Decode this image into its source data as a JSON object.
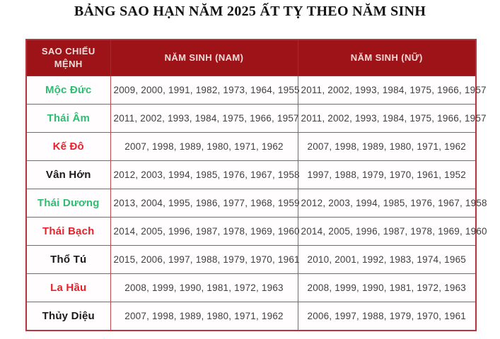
{
  "title": "BẢNG SAO HẠN NĂM 2025 ẤT TỴ THEO NĂM SINH",
  "table": {
    "headers": [
      "SAO CHIẾU MỆNH",
      "NĂM SINH (NAM)",
      "NĂM SINH (NỮ)"
    ],
    "rows": [
      {
        "star": "Mộc Đức",
        "color": "green",
        "nam": "2009, 2000, 1991, 1982, 1973, 1964, 1955",
        "nu": "2011, 2002, 1993, 1984, 1975, 1966, 1957"
      },
      {
        "star": "Thái Âm",
        "color": "green",
        "nam": "2011, 2002, 1993, 1984, 1975, 1966, 1957",
        "nu": "2011, 2002, 1993, 1984, 1975, 1966, 1957"
      },
      {
        "star": "Kế Đô",
        "color": "red",
        "nam": "2007, 1998, 1989, 1980, 1971, 1962",
        "nu": "2007, 1998, 1989, 1980, 1971, 1962"
      },
      {
        "star": "Vân Hớn",
        "color": "black",
        "nam": "2012, 2003, 1994, 1985, 1976, 1967, 1958",
        "nu": "1997, 1988, 1979, 1970, 1961, 1952"
      },
      {
        "star": "Thái Dương",
        "color": "green",
        "nam": "2013, 2004, 1995, 1986, 1977, 1968, 1959",
        "nu": "2012, 2003, 1994, 1985, 1976, 1967, 1958"
      },
      {
        "star": "Thái Bạch",
        "color": "red",
        "nam": "2014, 2005, 1996, 1987, 1978, 1969, 1960",
        "nu": "2014, 2005, 1996, 1987, 1978, 1969, 1960"
      },
      {
        "star": "Thổ Tú",
        "color": "black",
        "nam": "2015, 2006, 1997, 1988, 1979, 1970, 1961",
        "nu": "2010, 2001, 1992, 1983, 1974, 1965"
      },
      {
        "star": "La Hầu",
        "color": "red",
        "nam": "2008, 1999, 1990, 1981, 1972, 1963",
        "nu": "2008, 1999, 1990, 1981, 1972, 1963"
      },
      {
        "star": "Thủy Diệu",
        "color": "black",
        "nam": "2007, 1998, 1989, 1980, 1971, 1962",
        "nu": "2006, 1997, 1988, 1979, 1970, 1961"
      }
    ]
  },
  "colors": {
    "header_bg": "#9d1318",
    "header_text": "#f3dcda",
    "border": "#c4484e",
    "green": "#2dbe71",
    "red": "#e8212a",
    "black": "#1a1a1a",
    "year_text": "#3f3f3f"
  }
}
